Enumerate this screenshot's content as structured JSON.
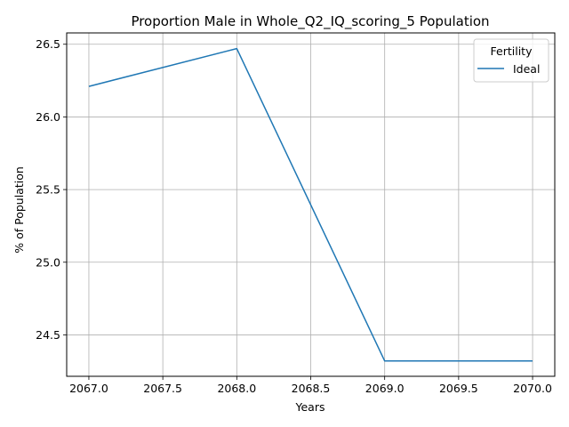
{
  "chart_data": {
    "type": "line",
    "title": "Proportion Male in Whole_Q2_IQ_scoring_5 Population",
    "xlabel": "Years",
    "ylabel": "% of Population",
    "x": [
      2067,
      2068,
      2069,
      2070
    ],
    "series": [
      {
        "name": "Ideal",
        "values": [
          26.21,
          26.47,
          24.32,
          24.32
        ],
        "color": "#1f77b4"
      }
    ],
    "xlim": [
      2066.85,
      2070.15
    ],
    "ylim": [
      24.215,
      26.578
    ],
    "xticks": [
      2067.0,
      2067.5,
      2068.0,
      2068.5,
      2069.0,
      2069.5,
      2070.0
    ],
    "xtick_labels": [
      "2067.0",
      "2067.5",
      "2068.0",
      "2068.5",
      "2069.0",
      "2069.5",
      "2070.0"
    ],
    "yticks": [
      24.5,
      25.0,
      25.5,
      26.0,
      26.5
    ],
    "ytick_labels": [
      "24.5",
      "25.0",
      "25.5",
      "26.0",
      "26.5"
    ],
    "grid": true,
    "legend": {
      "title": "Fertility",
      "position": "top-right"
    }
  }
}
